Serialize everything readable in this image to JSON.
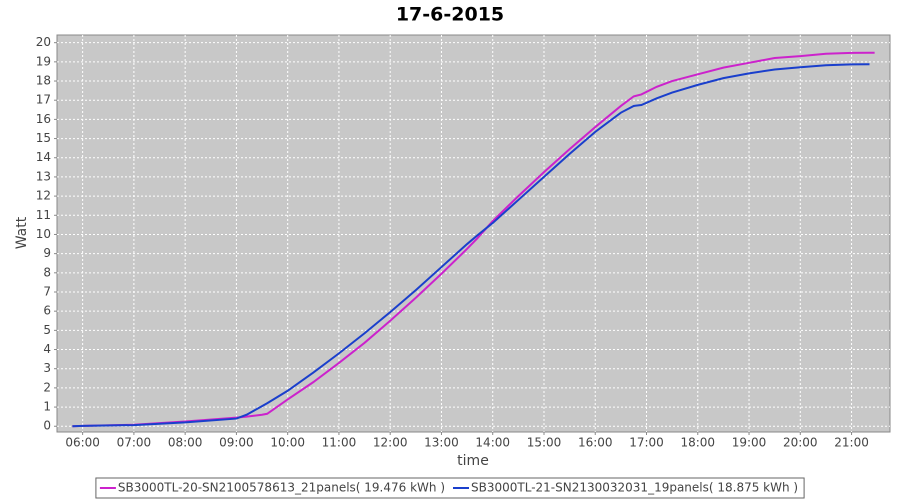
{
  "chart_data": {
    "type": "line",
    "title": "17-6-2015",
    "x_label": "time",
    "y_label": "Watt",
    "x": [
      5.8,
      6,
      7,
      8,
      9,
      9.2,
      9.5,
      9.6,
      10,
      10.5,
      11,
      11.5,
      12,
      12.5,
      13,
      13.5,
      13.7,
      14,
      14.5,
      15,
      15.5,
      16,
      16.5,
      16.75,
      16.9,
      17.2,
      17.5,
      18,
      18.5,
      19,
      19.5,
      20,
      20.5,
      21,
      21.35,
      21.45
    ],
    "series": [
      {
        "name": "SB3000TL-20-SN2100578613_21panels( 19.476 kWh )",
        "color": "#cc22cc",
        "values": [
          0,
          0.02,
          0.08,
          0.25,
          0.45,
          0.5,
          0.6,
          0.65,
          1.4,
          2.3,
          3.3,
          4.35,
          5.5,
          6.7,
          7.95,
          9.25,
          9.8,
          10.7,
          12,
          13.25,
          14.45,
          15.6,
          16.7,
          17.2,
          17.3,
          17.7,
          18,
          18.35,
          18.7,
          18.95,
          19.2,
          19.3,
          19.42,
          19.47,
          19.476,
          19.476
        ]
      },
      {
        "name": "SB3000TL-21-SN2130032031_19panels( 18.875 kWh )",
        "color": "#1a3fcc",
        "values": [
          0,
          0.02,
          0.06,
          0.2,
          0.4,
          0.6,
          1.05,
          1.2,
          1.85,
          2.8,
          3.8,
          4.85,
          5.95,
          7.1,
          8.3,
          9.5,
          9.95,
          10.6,
          11.8,
          13,
          14.2,
          15.35,
          16.35,
          16.7,
          16.75,
          17.1,
          17.4,
          17.8,
          18.15,
          18.4,
          18.6,
          18.72,
          18.82,
          18.87,
          18.875,
          null
        ]
      }
    ],
    "xlim": [
      5.5,
      21.75
    ],
    "xticks": [
      {
        "value": 6,
        "label": "06:00"
      },
      {
        "value": 7,
        "label": "07:00"
      },
      {
        "value": 8,
        "label": "08:00"
      },
      {
        "value": 9,
        "label": "09:00"
      },
      {
        "value": 10,
        "label": "10:00"
      },
      {
        "value": 11,
        "label": "11:00"
      },
      {
        "value": 12,
        "label": "12:00"
      },
      {
        "value": 13,
        "label": "13:00"
      },
      {
        "value": 14,
        "label": "14:00"
      },
      {
        "value": 15,
        "label": "15:00"
      },
      {
        "value": 16,
        "label": "16:00"
      },
      {
        "value": 17,
        "label": "17:00"
      },
      {
        "value": 18,
        "label": "18:00"
      },
      {
        "value": 19,
        "label": "19:00"
      },
      {
        "value": 20,
        "label": "20:00"
      },
      {
        "value": 21,
        "label": "21:00"
      }
    ],
    "ylim": [
      -0.3,
      20.4
    ],
    "yticks": [
      0,
      1,
      2,
      3,
      4,
      5,
      6,
      7,
      8,
      9,
      10,
      11,
      12,
      13,
      14,
      15,
      16,
      17,
      18,
      19,
      20
    ],
    "grid": true
  }
}
